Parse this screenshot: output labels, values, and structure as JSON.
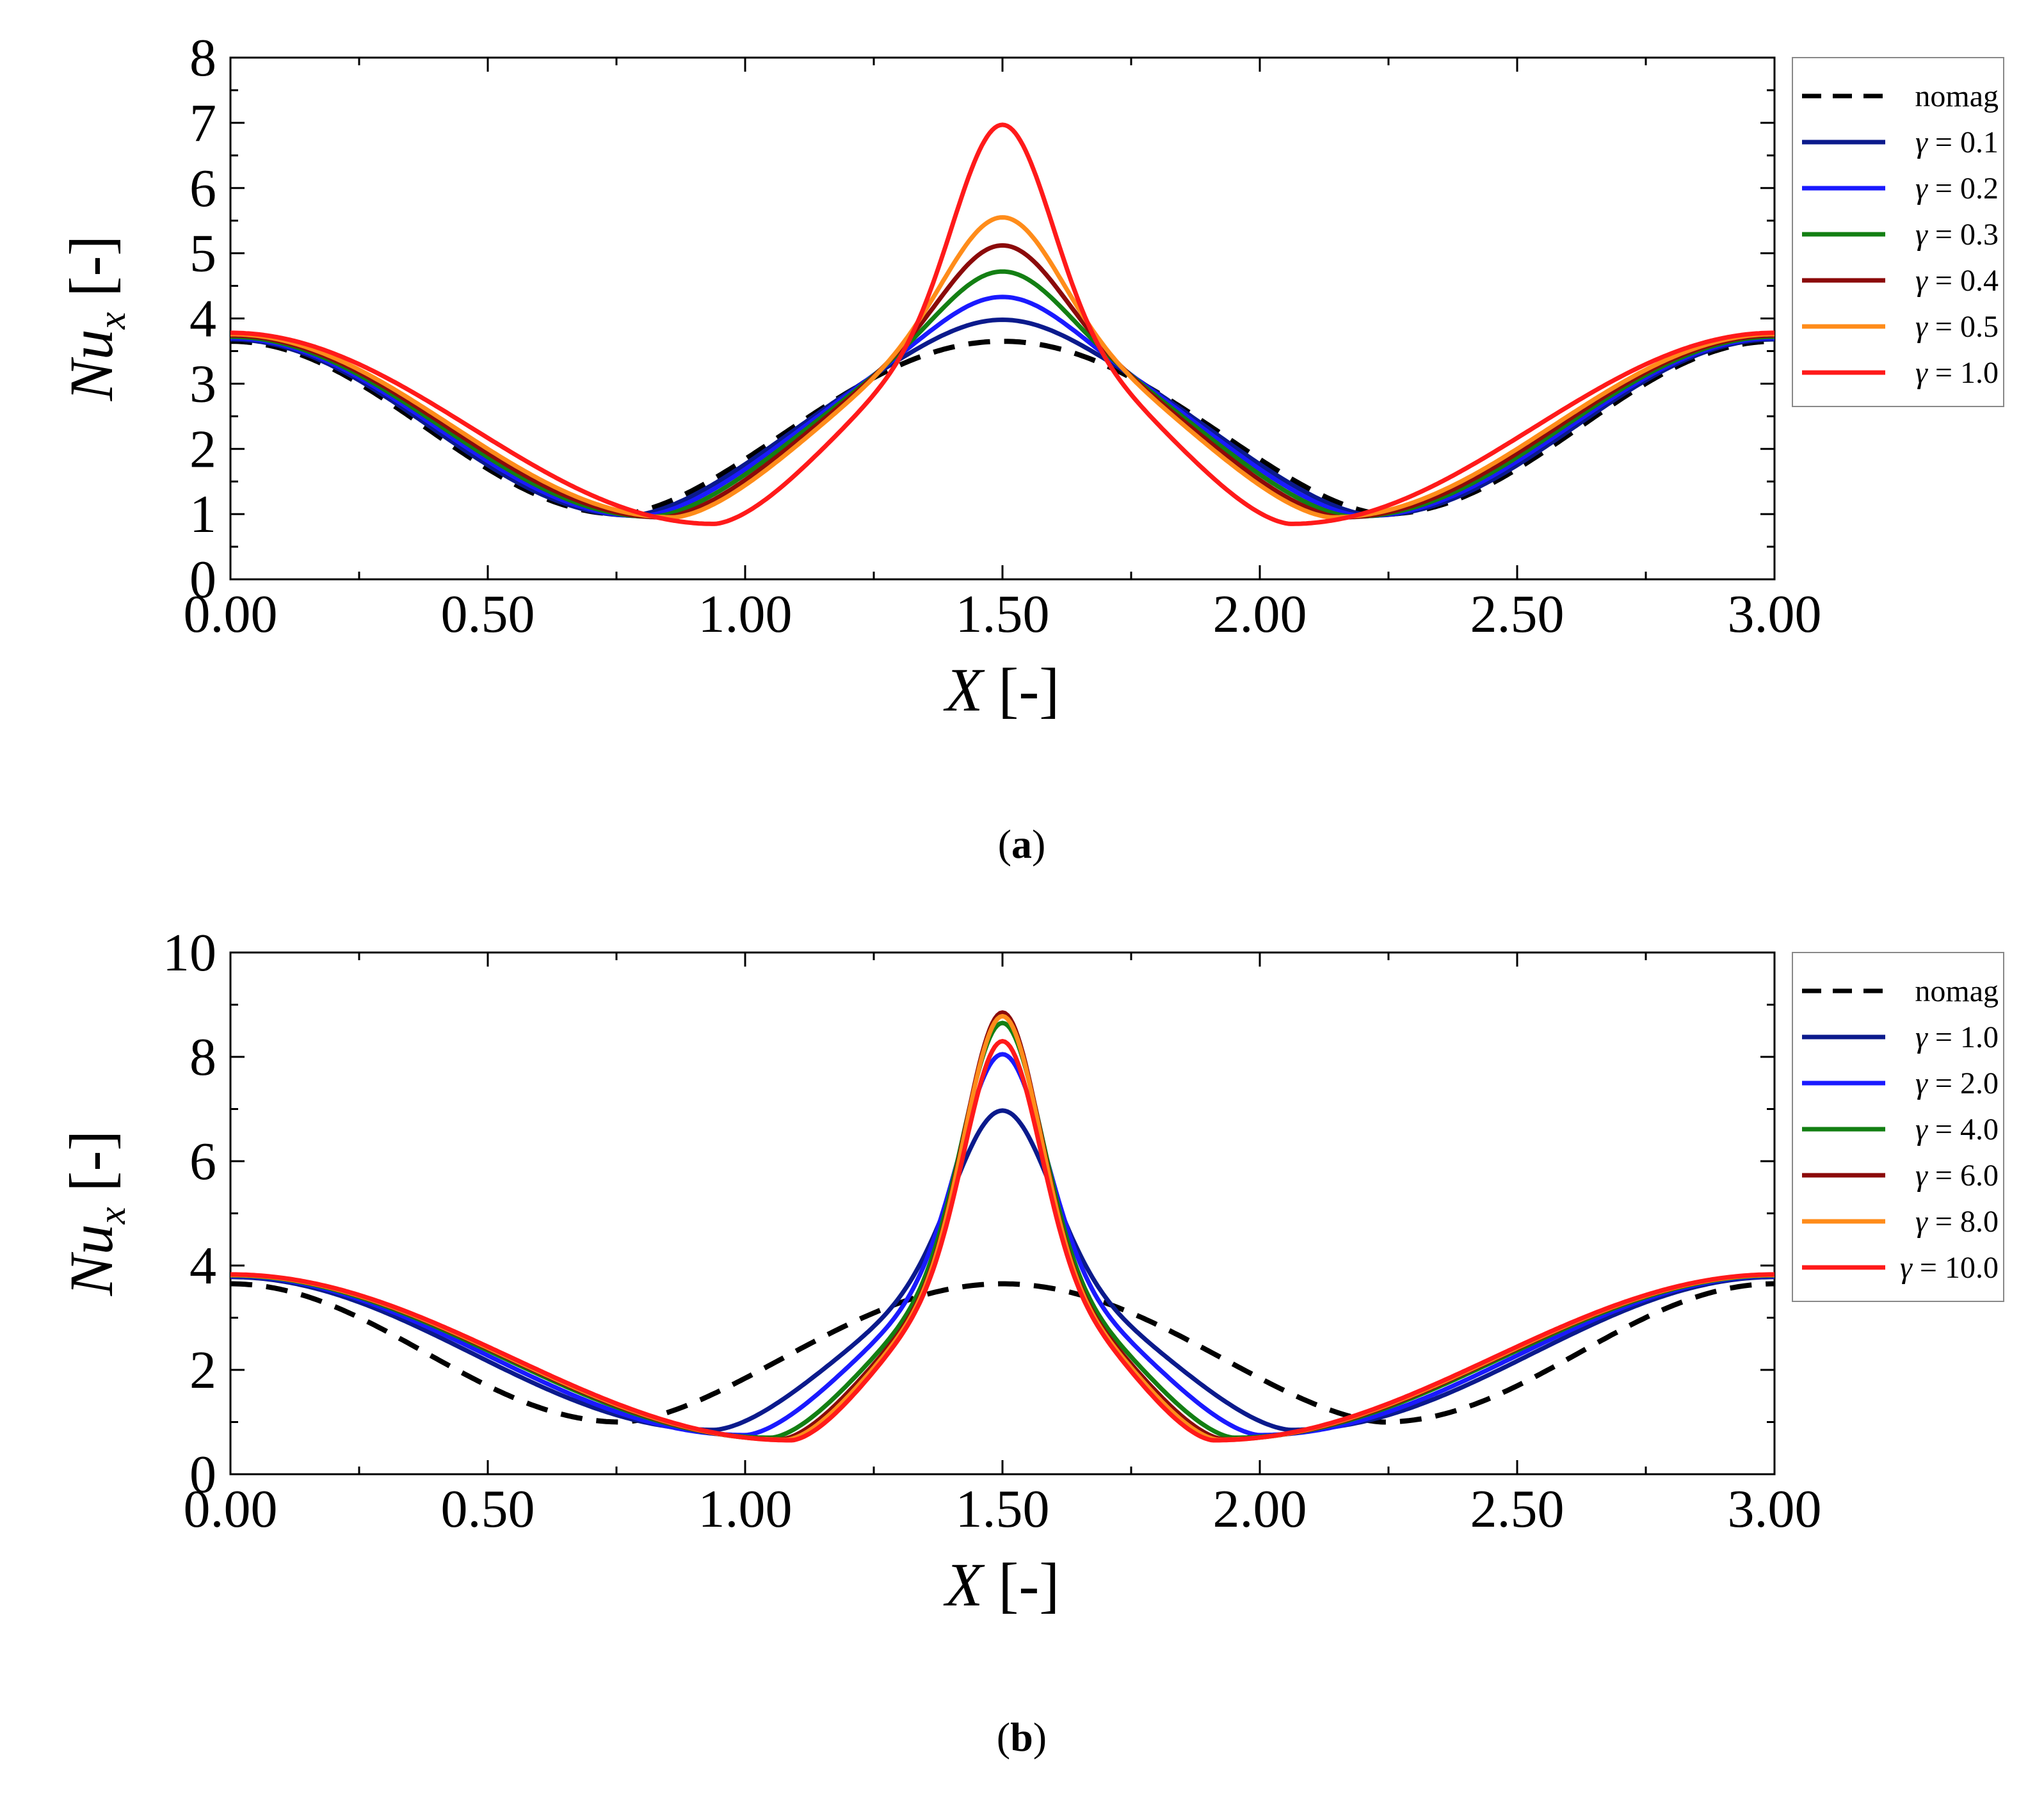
{
  "chart_data": [
    {
      "type": "line",
      "panel": "a",
      "caption": "(a)",
      "caption_parts": {
        "open": "(",
        "letter": "a",
        "close": ")"
      },
      "xlabel": "X [-]",
      "xlabel_parts": {
        "var": "X",
        "unit": " [-]"
      },
      "ylabel": "Nu_x [-]",
      "ylabel_parts": {
        "var": "Nu",
        "sub": "x",
        "unit": " [-]"
      },
      "xlim": [
        0,
        3
      ],
      "ylim": [
        0,
        8
      ],
      "xticks": [
        0,
        0.5,
        1,
        1.5,
        2,
        2.5,
        3
      ],
      "xtick_labels": [
        "0.00",
        "0.50",
        "1.00",
        "1.50",
        "2.00",
        "2.50",
        "3.00"
      ],
      "yticks": [
        0,
        1,
        2,
        3,
        4,
        5,
        6,
        7,
        8
      ],
      "ytick_labels": [
        "0",
        "1",
        "2",
        "3",
        "4",
        "5",
        "6",
        "7",
        "8"
      ],
      "legend_position": "right",
      "series": [
        {
          "name": "nomag",
          "label_parts": {
            "sym": "",
            "txt": "nomag"
          },
          "color": "#000000",
          "dashed": true,
          "base": 3.65,
          "min": 1.0,
          "xmin": 0.76,
          "peak": 3.65,
          "w": 0.18
        },
        {
          "name": "γ = 0.1",
          "label_parts": {
            "sym": "γ",
            "txt": " = 0.1"
          },
          "color": "#0b1a8c",
          "dashed": false,
          "base": 3.68,
          "min": 0.98,
          "xmin": 0.78,
          "peak": 3.98,
          "w": 0.18
        },
        {
          "name": "γ = 0.2",
          "label_parts": {
            "sym": "γ",
            "txt": " = 0.2"
          },
          "color": "#1a1aff",
          "dashed": false,
          "base": 3.7,
          "min": 0.97,
          "xmin": 0.8,
          "peak": 4.33,
          "w": 0.17
        },
        {
          "name": "γ = 0.3",
          "label_parts": {
            "sym": "γ",
            "txt": " = 0.3"
          },
          "color": "#137f13",
          "dashed": false,
          "base": 3.72,
          "min": 0.96,
          "xmin": 0.82,
          "peak": 4.72,
          "w": 0.16
        },
        {
          "name": "γ = 0.4",
          "label_parts": {
            "sym": "γ",
            "txt": " = 0.4"
          },
          "color": "#8b0a0a",
          "dashed": false,
          "base": 3.74,
          "min": 0.95,
          "xmin": 0.84,
          "peak": 5.12,
          "w": 0.155
        },
        {
          "name": "γ = 0.5",
          "label_parts": {
            "sym": "γ",
            "txt": " = 0.5"
          },
          "color": "#ff8c1a",
          "dashed": false,
          "base": 3.76,
          "min": 0.95,
          "xmin": 0.86,
          "peak": 5.55,
          "w": 0.15
        },
        {
          "name": "γ = 1.0",
          "label_parts": {
            "sym": "γ",
            "txt": " = 1.0"
          },
          "color": "#ff1a1a",
          "dashed": false,
          "base": 3.78,
          "min": 0.85,
          "xmin": 0.94,
          "peak": 6.97,
          "w": 0.13
        }
      ]
    },
    {
      "type": "line",
      "panel": "b",
      "caption": "(b)",
      "caption_parts": {
        "open": "(",
        "letter": "b",
        "close": ")"
      },
      "xlabel": "X [-]",
      "xlabel_parts": {
        "var": "X",
        "unit": " [-]"
      },
      "ylabel": "Nu_x [-]",
      "ylabel_parts": {
        "var": "Nu",
        "sub": "x",
        "unit": " [-]"
      },
      "xlim": [
        0,
        3
      ],
      "ylim": [
        0,
        10
      ],
      "xticks": [
        0,
        0.5,
        1,
        1.5,
        2,
        2.5,
        3
      ],
      "xtick_labels": [
        "0.00",
        "0.50",
        "1.00",
        "1.50",
        "2.00",
        "2.50",
        "3.00"
      ],
      "yticks": [
        0,
        2,
        4,
        6,
        8,
        10
      ],
      "ytick_labels": [
        "0",
        "2",
        "4",
        "6",
        "8",
        "10"
      ],
      "legend_position": "right",
      "series": [
        {
          "name": "nomag",
          "label_parts": {
            "sym": "",
            "txt": "nomag"
          },
          "color": "#000000",
          "dashed": true,
          "base": 3.65,
          "min": 1.0,
          "xmin": 0.76,
          "peak": 3.65,
          "w": 0.18
        },
        {
          "name": "γ = 1.0",
          "label_parts": {
            "sym": "γ",
            "txt": " = 1.0"
          },
          "color": "#0b1a8c",
          "dashed": false,
          "base": 3.78,
          "min": 0.85,
          "xmin": 0.94,
          "peak": 6.97,
          "w": 0.13
        },
        {
          "name": "γ = 2.0",
          "label_parts": {
            "sym": "γ",
            "txt": " = 2.0"
          },
          "color": "#1a1aff",
          "dashed": false,
          "base": 3.8,
          "min": 0.75,
          "xmin": 1.0,
          "peak": 8.05,
          "w": 0.115
        },
        {
          "name": "γ = 4.0",
          "label_parts": {
            "sym": "γ",
            "txt": " = 4.0"
          },
          "color": "#137f13",
          "dashed": false,
          "base": 3.81,
          "min": 0.7,
          "xmin": 1.05,
          "peak": 8.65,
          "w": 0.105
        },
        {
          "name": "γ = 6.0",
          "label_parts": {
            "sym": "γ",
            "txt": " = 6.0"
          },
          "color": "#8b0a0a",
          "dashed": false,
          "base": 3.82,
          "min": 0.67,
          "xmin": 1.07,
          "peak": 8.85,
          "w": 0.1
        },
        {
          "name": "γ = 8.0",
          "label_parts": {
            "sym": "γ",
            "txt": " = 8.0"
          },
          "color": "#ff8c1a",
          "dashed": false,
          "base": 3.82,
          "min": 0.66,
          "xmin": 1.08,
          "peak": 8.78,
          "w": 0.1
        },
        {
          "name": "γ = 10.0",
          "label_parts": {
            "sym": "γ",
            "txt": " = 10.0"
          },
          "color": "#ff1a1a",
          "dashed": false,
          "base": 3.83,
          "min": 0.65,
          "xmin": 1.09,
          "peak": 8.3,
          "w": 0.1
        }
      ]
    }
  ]
}
